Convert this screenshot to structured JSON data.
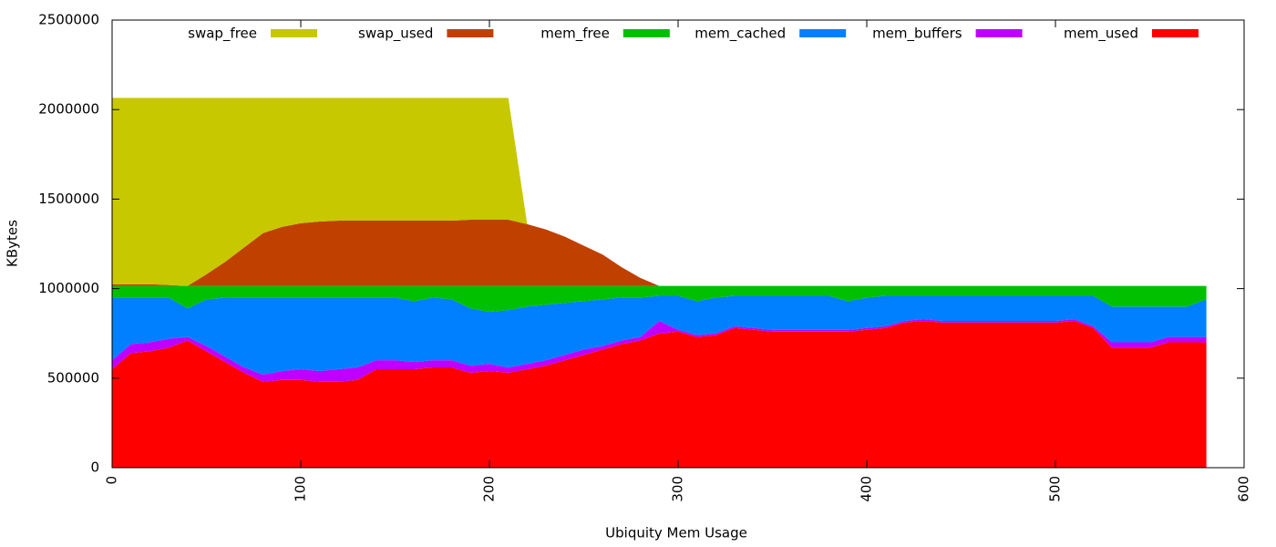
{
  "chart_data": {
    "type": "area",
    "stacked": true,
    "xlabel": "Ubiquity Mem Usage",
    "ylabel": "KBytes",
    "xlim": [
      0,
      600
    ],
    "xticks": [
      0,
      100,
      200,
      300,
      400,
      500,
      600
    ],
    "ylim": [
      0,
      2500000
    ],
    "yticks": [
      0,
      500000,
      1000000,
      1500000,
      2000000,
      2500000
    ],
    "legend": "top",
    "x": [
      0,
      10,
      20,
      30,
      40,
      50,
      60,
      70,
      80,
      90,
      100,
      110,
      120,
      130,
      140,
      150,
      160,
      170,
      180,
      190,
      200,
      210,
      220,
      230,
      240,
      250,
      260,
      270,
      280,
      290,
      300,
      310,
      320,
      330,
      340,
      350,
      360,
      370,
      380,
      390,
      400,
      410,
      420,
      430,
      440,
      450,
      460,
      470,
      480,
      490,
      500,
      510,
      520,
      530,
      540,
      550,
      560,
      570,
      580
    ],
    "series": [
      {
        "name": "swap_free",
        "color": "#c8c800",
        "values": [
          1040000,
          1040000,
          1040000,
          1045000,
          1050000,
          985000,
          915000,
          835000,
          755000,
          720000,
          700000,
          690000,
          685000,
          685000,
          685000,
          685000,
          685000,
          685000,
          685000,
          680000,
          680000,
          680000,
          0,
          0,
          0,
          0,
          0,
          0,
          0,
          0,
          0,
          0,
          0,
          0,
          0,
          0,
          0,
          0,
          0,
          0,
          0,
          0,
          0,
          0,
          0,
          0,
          0,
          0,
          0,
          0,
          0,
          0,
          0,
          0,
          0,
          0,
          0,
          0,
          0
        ]
      },
      {
        "name": "swap_used",
        "color": "#c04000",
        "values": [
          10000,
          10000,
          10000,
          5000,
          0,
          65000,
          135000,
          215000,
          295000,
          330000,
          350000,
          360000,
          365000,
          365000,
          365000,
          365000,
          365000,
          365000,
          365000,
          370000,
          370000,
          370000,
          345000,
          315000,
          275000,
          225000,
          175000,
          105000,
          45000,
          0,
          0,
          0,
          0,
          0,
          0,
          0,
          0,
          0,
          0,
          0,
          0,
          0,
          0,
          0,
          0,
          0,
          0,
          0,
          0,
          0,
          0,
          0,
          0,
          0,
          0,
          0,
          0,
          0,
          0
        ]
      },
      {
        "name": "mem_free",
        "color": "#00c000",
        "values": [
          65000,
          65000,
          65000,
          65000,
          125000,
          75000,
          65000,
          65000,
          65000,
          65000,
          65000,
          65000,
          65000,
          65000,
          65000,
          65000,
          85000,
          65000,
          75000,
          125000,
          145000,
          135000,
          115000,
          105000,
          95000,
          85000,
          75000,
          65000,
          65000,
          55000,
          55000,
          85000,
          65000,
          55000,
          55000,
          55000,
          55000,
          55000,
          55000,
          85000,
          65000,
          55000,
          55000,
          55000,
          55000,
          55000,
          55000,
          55000,
          55000,
          55000,
          55000,
          55000,
          55000,
          115000,
          115000,
          115000,
          115000,
          115000,
          75000
        ]
      },
      {
        "name": "mem_cached",
        "color": "#0080ff",
        "values": [
          350000,
          260000,
          250000,
          230000,
          160000,
          260000,
          330000,
          390000,
          430000,
          410000,
          400000,
          410000,
          400000,
          390000,
          350000,
          350000,
          340000,
          350000,
          340000,
          320000,
          290000,
          320000,
          320000,
          310000,
          290000,
          270000,
          260000,
          240000,
          220000,
          140000,
          190000,
          190000,
          200000,
          170000,
          180000,
          190000,
          190000,
          190000,
          190000,
          160000,
          170000,
          170000,
          140000,
          130000,
          140000,
          140000,
          140000,
          140000,
          140000,
          140000,
          140000,
          130000,
          170000,
          200000,
          200000,
          200000,
          170000,
          170000,
          210000
        ]
      },
      {
        "name": "mem_buffers",
        "color": "#c000ff",
        "values": [
          50000,
          50000,
          50000,
          50000,
          20000,
          30000,
          30000,
          30000,
          40000,
          50000,
          60000,
          60000,
          70000,
          70000,
          50000,
          50000,
          40000,
          40000,
          40000,
          40000,
          40000,
          30000,
          30000,
          30000,
          30000,
          30000,
          20000,
          20000,
          20000,
          70000,
          10000,
          10000,
          10000,
          10000,
          10000,
          10000,
          10000,
          10000,
          10000,
          10000,
          10000,
          10000,
          10000,
          10000,
          10000,
          10000,
          10000,
          10000,
          10000,
          10000,
          10000,
          10000,
          10000,
          30000,
          30000,
          30000,
          30000,
          30000,
          30000
        ]
      },
      {
        "name": "mem_used",
        "color": "#ff0000",
        "values": [
          550000,
          640000,
          650000,
          670000,
          710000,
          650000,
          590000,
          530000,
          480000,
          490000,
          490000,
          480000,
          480000,
          490000,
          550000,
          550000,
          550000,
          560000,
          560000,
          530000,
          540000,
          530000,
          550000,
          570000,
          600000,
          630000,
          660000,
          690000,
          710000,
          750000,
          760000,
          730000,
          740000,
          780000,
          770000,
          760000,
          760000,
          760000,
          760000,
          760000,
          770000,
          780000,
          810000,
          820000,
          810000,
          810000,
          810000,
          810000,
          810000,
          810000,
          810000,
          820000,
          780000,
          670000,
          670000,
          670000,
          700000,
          700000,
          700000
        ]
      }
    ]
  }
}
